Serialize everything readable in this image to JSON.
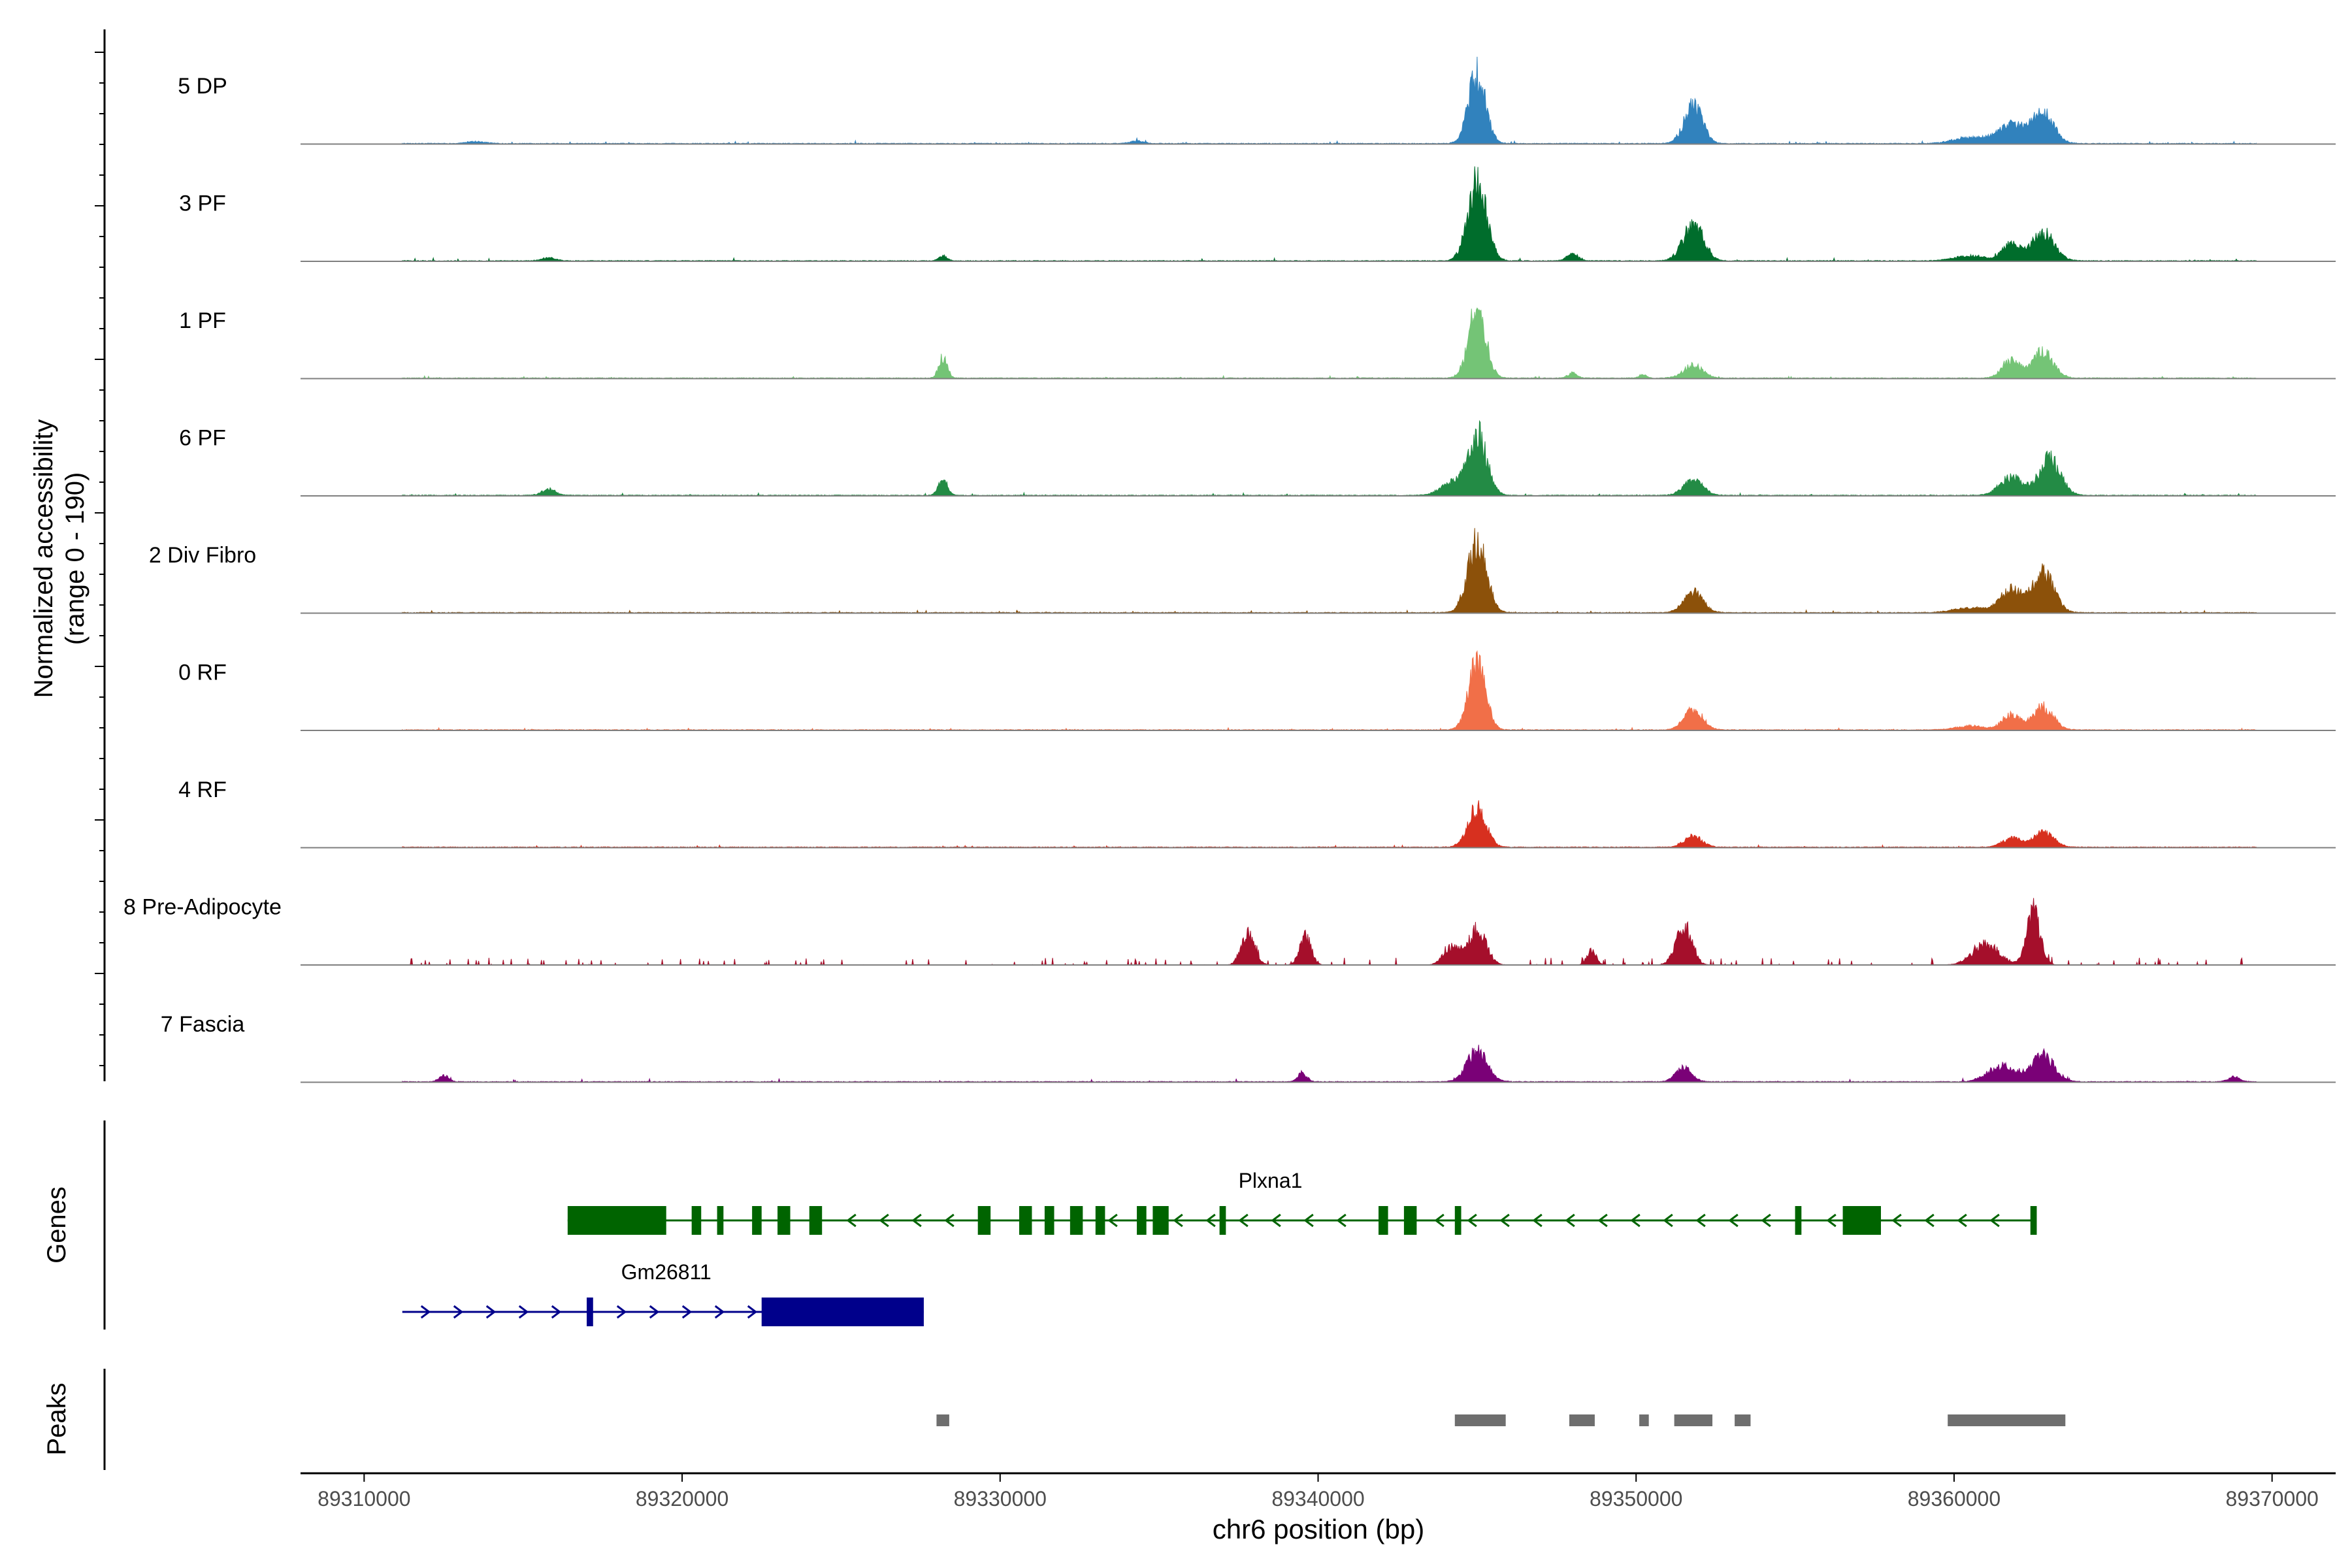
{
  "chart_data": {
    "type": "area",
    "y_title_line1": "Normalized accessibility",
    "y_title_line2": "(range 0 - 190)",
    "ylim": [
      0,
      190
    ],
    "xlabel": "chr6 position (bp)",
    "xlim": [
      89308000,
      89372000
    ],
    "x_ticks": [
      89310000,
      89320000,
      89330000,
      89340000,
      89350000,
      89360000,
      89370000
    ],
    "x_tick_labels": [
      "89310000",
      "89320000",
      "89330000",
      "89340000",
      "89350000",
      "89360000",
      "89370000"
    ],
    "tracks": [
      {
        "name": "5 DP",
        "color": "#3182bd",
        "baseline": 1.3,
        "noise": 5,
        "peaks": [
          [
            89345000,
            170,
            380
          ],
          [
            89351800,
            95,
            400
          ],
          [
            89361800,
            45,
            600
          ],
          [
            89362800,
            72,
            480
          ],
          [
            89360500,
            15,
            700
          ],
          [
            89334300,
            6,
            300
          ],
          [
            89313500,
            5,
            400
          ]
        ]
      },
      {
        "name": "3 PF",
        "color": "#006d2c",
        "baseline": 1.3,
        "noise": 5,
        "peaks": [
          [
            89345000,
            190,
            420
          ],
          [
            89351800,
            90,
            450
          ],
          [
            89362800,
            68,
            500
          ],
          [
            89361800,
            40,
            400
          ],
          [
            89328200,
            12,
            180
          ],
          [
            89348000,
            18,
            250
          ],
          [
            89360500,
            12,
            700
          ],
          [
            89315800,
            8,
            300
          ]
        ]
      },
      {
        "name": "1 PF",
        "color": "#74c476",
        "baseline": 1.3,
        "noise": 4,
        "peaks": [
          [
            89345000,
            170,
            380
          ],
          [
            89328200,
            52,
            180
          ],
          [
            89351800,
            32,
            420
          ],
          [
            89362800,
            65,
            450
          ],
          [
            89361800,
            42,
            400
          ],
          [
            89348000,
            12,
            200
          ],
          [
            89350200,
            10,
            150
          ]
        ]
      },
      {
        "name": "6 PF",
        "color": "#238b45",
        "baseline": 1.3,
        "noise": 5,
        "peaks": [
          [
            89345000,
            150,
            420
          ],
          [
            89328200,
            42,
            200
          ],
          [
            89351800,
            38,
            420
          ],
          [
            89363000,
            88,
            480
          ],
          [
            89361800,
            45,
            500
          ],
          [
            89315800,
            15,
            300
          ],
          [
            89344200,
            30,
            500
          ]
        ]
      },
      {
        "name": "2 Div Fibro",
        "color": "#8c510a",
        "baseline": 1.3,
        "noise": 5,
        "peaks": [
          [
            89345000,
            170,
            420
          ],
          [
            89351800,
            50,
            420
          ],
          [
            89362800,
            95,
            480
          ],
          [
            89361800,
            55,
            500
          ],
          [
            89360500,
            12,
            700
          ]
        ]
      },
      {
        "name": "0 RF",
        "color": "#f16f48",
        "baseline": 1.3,
        "noise": 4,
        "peaks": [
          [
            89345000,
            165,
            380
          ],
          [
            89351800,
            48,
            420
          ],
          [
            89362800,
            55,
            450
          ],
          [
            89361800,
            38,
            400
          ],
          [
            89360500,
            10,
            600
          ]
        ]
      },
      {
        "name": "4 RF",
        "color": "#d7301f",
        "baseline": 1.3,
        "noise": 4,
        "peaks": [
          [
            89345000,
            95,
            400
          ],
          [
            89351800,
            28,
            380
          ],
          [
            89362800,
            38,
            450
          ],
          [
            89361800,
            22,
            400
          ]
        ]
      },
      {
        "name": "8 Pre-Adipocyte",
        "color": "#a50f2b",
        "baseline": 0,
        "noise": 14,
        "sparse": true,
        "peaks": [
          [
            89337800,
            75,
            300
          ],
          [
            89339600,
            72,
            250
          ],
          [
            89345000,
            85,
            400
          ],
          [
            89351500,
            95,
            350
          ],
          [
            89362500,
            130,
            300
          ],
          [
            89361000,
            50,
            600
          ],
          [
            89348600,
            35,
            200
          ],
          [
            89344200,
            45,
            350
          ]
        ]
      },
      {
        "name": "7 Fascia",
        "color": "#7a0177",
        "baseline": 1.3,
        "noise": 6,
        "peaks": [
          [
            89345000,
            75,
            450
          ],
          [
            89351500,
            35,
            350
          ],
          [
            89362800,
            65,
            500
          ],
          [
            89361500,
            40,
            600
          ],
          [
            89339500,
            22,
            200
          ],
          [
            89312500,
            16,
            200
          ],
          [
            89368800,
            12,
            250
          ]
        ]
      }
    ],
    "genes": [
      {
        "name": "Plxna1",
        "color": "#006400",
        "strand": "-",
        "start": 89316400,
        "end": 89362500,
        "exons": [
          [
            89316400,
            89319500
          ],
          [
            89356500,
            89357700
          ],
          [
            89320300,
            89320600
          ],
          [
            89321100,
            89321300
          ],
          [
            89322200,
            89322500
          ],
          [
            89323000,
            89323400
          ],
          [
            89324000,
            89324400
          ],
          [
            89329300,
            89329700
          ],
          [
            89330600,
            89331000
          ],
          [
            89331400,
            89331700
          ],
          [
            89332200,
            89332600
          ],
          [
            89333000,
            89333300
          ],
          [
            89334300,
            89334600
          ],
          [
            89334800,
            89335300
          ],
          [
            89336900,
            89337100
          ],
          [
            89341900,
            89342200
          ],
          [
            89342700,
            89343100
          ],
          [
            89344300,
            89344500
          ],
          [
            89355000,
            89355200
          ],
          [
            89362400,
            89362600
          ]
        ]
      },
      {
        "name": "Gm26811",
        "color": "#00008b",
        "strand": "+",
        "start": 89311200,
        "end": 89327600,
        "exons": [
          [
            89322500,
            89327600
          ],
          [
            89317000,
            89317200
          ]
        ]
      }
    ],
    "peaks": [
      [
        89328000,
        89328400
      ],
      [
        89344300,
        89345900
      ],
      [
        89347900,
        89348700
      ],
      [
        89350100,
        89350400
      ],
      [
        89351200,
        89352400
      ],
      [
        89353100,
        89353600
      ],
      [
        89359800,
        89363500
      ]
    ],
    "panel_labels": {
      "genes": "Genes",
      "peaks": "Peaks"
    }
  }
}
